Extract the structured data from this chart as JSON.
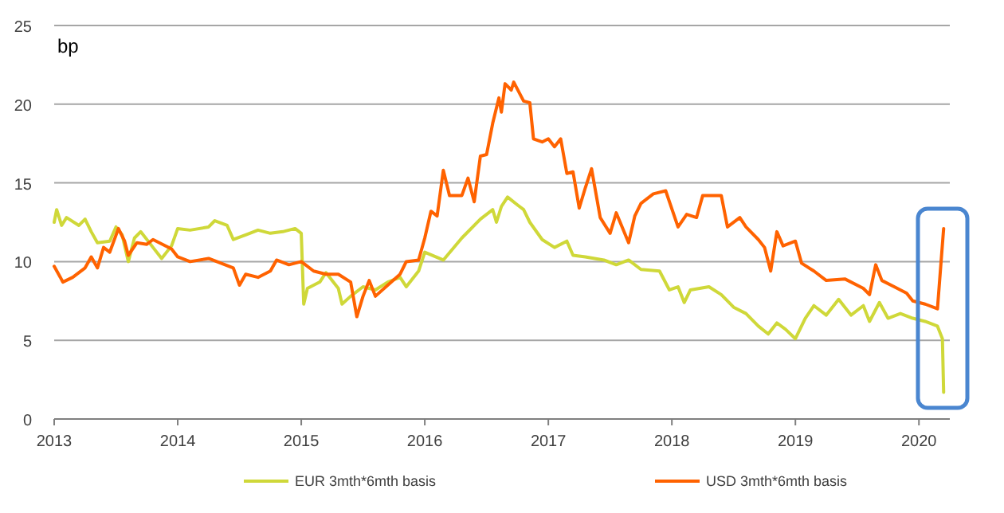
{
  "chart_data": {
    "type": "line",
    "ylabel": "bp",
    "xlim": [
      2013,
      2020.25
    ],
    "xticks": [
      2013,
      2014,
      2015,
      2016,
      2017,
      2018,
      2019,
      2020
    ],
    "ylim": [
      0,
      25
    ],
    "yticks": [
      0,
      5,
      10,
      15,
      20,
      25
    ],
    "grid": "y",
    "legend": "bottom",
    "marker": "none",
    "line_style": "solid",
    "series": [
      {
        "name": "EUR 3mth*6mth basis",
        "color": "#cfd839",
        "x": [
          2013.0,
          2013.02,
          2013.06,
          2013.1,
          2013.2,
          2013.25,
          2013.3,
          2013.35,
          2013.45,
          2013.5,
          2013.55,
          2013.6,
          2013.65,
          2013.7,
          2013.8,
          2013.87,
          2013.95,
          2014.0,
          2014.1,
          2014.25,
          2014.3,
          2014.4,
          2014.45,
          2014.55,
          2014.65,
          2014.75,
          2014.85,
          2014.95,
          2015.0,
          2015.02,
          2015.05,
          2015.15,
          2015.2,
          2015.3,
          2015.33,
          2015.4,
          2015.5,
          2015.6,
          2015.7,
          2015.8,
          2015.85,
          2015.95,
          2016.0,
          2016.15,
          2016.3,
          2016.45,
          2016.55,
          2016.58,
          2016.62,
          2016.67,
          2016.75,
          2016.8,
          2016.85,
          2016.95,
          2017.05,
          2017.15,
          2017.2,
          2017.3,
          2017.45,
          2017.55,
          2017.65,
          2017.75,
          2017.9,
          2017.98,
          2018.05,
          2018.1,
          2018.15,
          2018.3,
          2018.4,
          2018.5,
          2018.6,
          2018.7,
          2018.78,
          2018.85,
          2018.92,
          2019.0,
          2019.08,
          2019.15,
          2019.25,
          2019.35,
          2019.45,
          2019.55,
          2019.6,
          2019.68,
          2019.75,
          2019.85,
          2019.95,
          2020.05,
          2020.15,
          2020.19,
          2020.2
        ],
        "values": [
          12.5,
          13.3,
          12.3,
          12.8,
          12.3,
          12.7,
          11.9,
          11.2,
          11.3,
          12.2,
          11.7,
          10.0,
          11.5,
          11.9,
          10.9,
          10.2,
          11.0,
          12.1,
          12.0,
          12.2,
          12.6,
          12.3,
          11.4,
          11.7,
          12.0,
          11.8,
          11.9,
          12.1,
          11.8,
          7.3,
          8.3,
          8.7,
          9.3,
          8.3,
          7.3,
          7.8,
          8.4,
          8.2,
          8.7,
          9.0,
          8.4,
          9.4,
          10.6,
          10.1,
          11.5,
          12.7,
          13.3,
          12.5,
          13.5,
          14.1,
          13.6,
          13.3,
          12.5,
          11.4,
          10.9,
          11.3,
          10.4,
          10.3,
          10.1,
          9.8,
          10.1,
          9.5,
          9.4,
          8.2,
          8.4,
          7.4,
          8.2,
          8.4,
          7.9,
          7.1,
          6.7,
          5.9,
          5.4,
          6.1,
          5.7,
          5.1,
          6.4,
          7.2,
          6.6,
          7.6,
          6.6,
          7.2,
          6.2,
          7.4,
          6.4,
          6.7,
          6.4,
          6.2,
          5.9,
          5.1,
          1.7
        ]
      },
      {
        "name": "USD 3mth*6mth basis",
        "color": "#ff6200",
        "x": [
          2013.0,
          2013.05,
          2013.07,
          2013.15,
          2013.25,
          2013.3,
          2013.35,
          2013.4,
          2013.45,
          2013.52,
          2013.57,
          2013.6,
          2013.67,
          2013.75,
          2013.8,
          2013.95,
          2014.0,
          2014.1,
          2014.25,
          2014.35,
          2014.45,
          2014.5,
          2014.55,
          2014.65,
          2014.75,
          2014.8,
          2014.9,
          2015.0,
          2015.1,
          2015.2,
          2015.3,
          2015.4,
          2015.45,
          2015.5,
          2015.55,
          2015.6,
          2015.7,
          2015.8,
          2015.85,
          2015.95,
          2016.0,
          2016.05,
          2016.1,
          2016.15,
          2016.2,
          2016.3,
          2016.35,
          2016.4,
          2016.45,
          2016.5,
          2016.55,
          2016.6,
          2016.62,
          2016.65,
          2016.7,
          2016.72,
          2016.8,
          2016.85,
          2016.88,
          2016.95,
          2017.0,
          2017.05,
          2017.1,
          2017.15,
          2017.2,
          2017.25,
          2017.3,
          2017.35,
          2017.42,
          2017.5,
          2017.55,
          2017.65,
          2017.7,
          2017.75,
          2017.85,
          2017.95,
          2018.05,
          2018.12,
          2018.2,
          2018.25,
          2018.4,
          2018.45,
          2018.55,
          2018.6,
          2018.7,
          2018.75,
          2018.8,
          2018.85,
          2018.9,
          2019.0,
          2019.05,
          2019.15,
          2019.25,
          2019.4,
          2019.55,
          2019.6,
          2019.65,
          2019.7,
          2019.8,
          2019.9,
          2019.95,
          2020.05,
          2020.15,
          2020.2
        ],
        "values": [
          9.7,
          9.0,
          8.7,
          9.0,
          9.6,
          10.3,
          9.6,
          10.9,
          10.6,
          12.1,
          11.3,
          10.4,
          11.2,
          11.1,
          11.4,
          10.8,
          10.3,
          10.0,
          10.2,
          9.9,
          9.6,
          8.5,
          9.2,
          9.0,
          9.4,
          10.1,
          9.8,
          10.0,
          9.4,
          9.2,
          9.2,
          8.7,
          6.5,
          7.8,
          8.8,
          7.8,
          8.5,
          9.2,
          10.0,
          10.1,
          11.5,
          13.2,
          12.9,
          15.8,
          14.2,
          14.2,
          15.3,
          13.8,
          16.7,
          16.8,
          18.8,
          20.4,
          19.5,
          21.3,
          20.9,
          21.4,
          20.2,
          20.1,
          17.8,
          17.6,
          17.8,
          17.3,
          17.8,
          15.6,
          15.7,
          13.4,
          14.7,
          15.9,
          12.8,
          11.8,
          13.1,
          11.2,
          12.9,
          13.7,
          14.3,
          14.5,
          12.2,
          13.0,
          12.8,
          14.2,
          14.2,
          12.2,
          12.8,
          12.2,
          11.4,
          10.9,
          9.4,
          11.9,
          11.0,
          11.3,
          9.9,
          9.4,
          8.8,
          8.9,
          8.3,
          7.9,
          9.8,
          8.8,
          8.4,
          8.0,
          7.5,
          7.3,
          7.0,
          12.1
        ]
      }
    ]
  }
}
